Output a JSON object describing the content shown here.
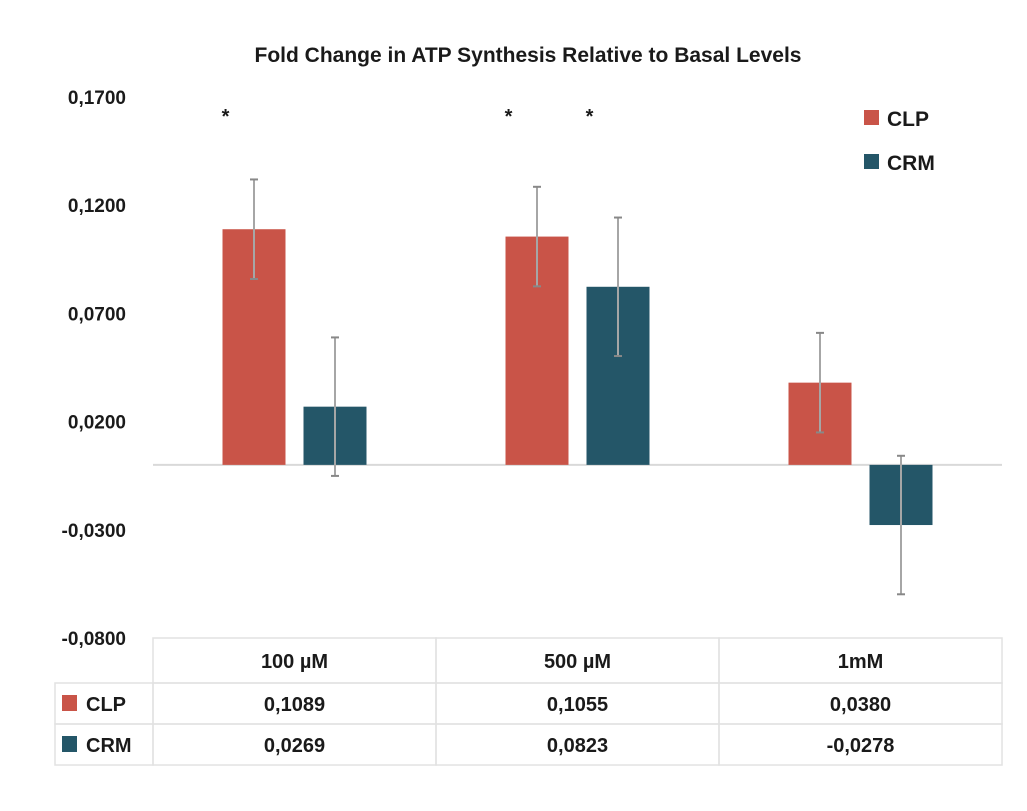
{
  "chart_data": {
    "type": "bar",
    "title": "Fold Change in ATP Synthesis Relative to Basal Levels",
    "xlabel": "",
    "ylabel": "",
    "categories": [
      "100 µM",
      "500 µM",
      "1mM"
    ],
    "series": [
      {
        "name": "CLP",
        "color": "#c95448",
        "values": [
          0.1089,
          0.1055,
          0.038
        ],
        "errors": [
          0.023,
          0.023,
          0.023
        ],
        "labels": [
          "0,1089",
          "0,1055",
          "0,0380"
        ]
      },
      {
        "name": "CRM",
        "color": "#245668",
        "values": [
          0.0269,
          0.0823,
          -0.0278
        ],
        "errors": [
          0.032,
          0.032,
          0.032
        ],
        "labels": [
          "0,0269",
          "0,0823",
          "-0,0278"
        ]
      }
    ],
    "ylim": [
      -0.08,
      0.17
    ],
    "yticks": [
      0.17,
      0.12,
      0.07,
      0.02,
      -0.03,
      -0.08
    ],
    "ytick_labels": [
      "0,1700",
      "0,1200",
      "0,0700",
      "0,0200",
      "-0,0300",
      "-0,0800"
    ],
    "significance": [
      {
        "category": 0,
        "series": 0,
        "mark": "*"
      },
      {
        "category": 1,
        "series": 0,
        "mark": "*"
      },
      {
        "category": 1,
        "series": 1,
        "mark": "*"
      }
    ],
    "legend": {
      "position": "top-right",
      "entries": [
        "CLP",
        "CRM"
      ]
    },
    "grid": false,
    "data_table": true,
    "error_bar_color": "#a6a6a6"
  }
}
